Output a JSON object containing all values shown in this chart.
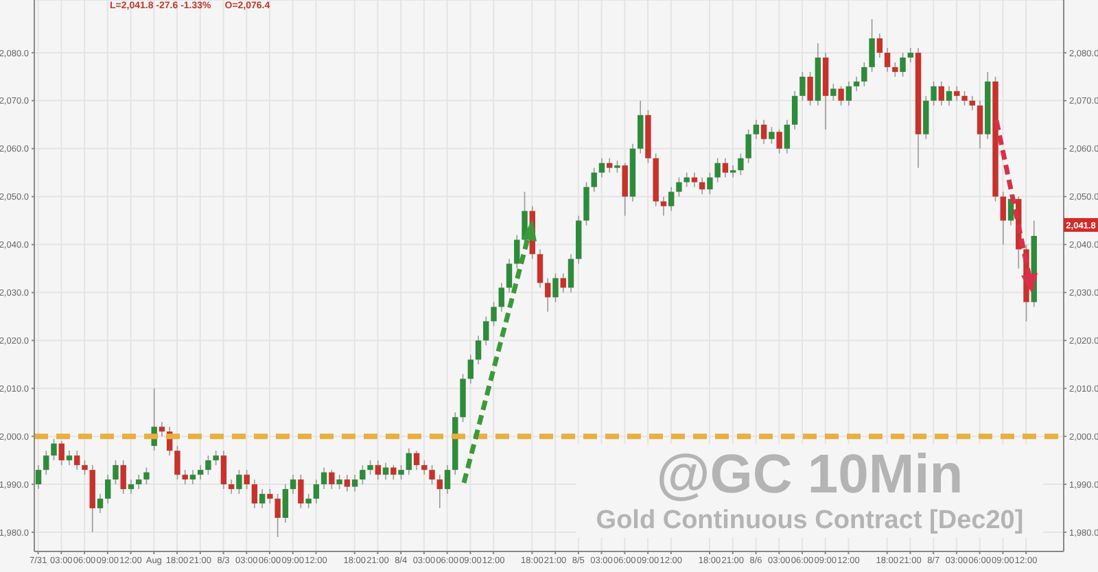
{
  "chart_data": {
    "type": "candlestick",
    "title": "@GC 10Min",
    "subtitle": "Gold Continuous Contract [Dec20]",
    "annotations": [
      "L=2,041.8  -27.6  -1.33%",
      "O=2,076.4",
      "2,041.8"
    ],
    "categories": [
      "7/31",
      null,
      null,
      "03:00",
      null,
      null,
      "06:00",
      null,
      null,
      "09:00",
      null,
      null,
      "12:00",
      null,
      null,
      "Aug",
      null,
      null,
      "18:00",
      null,
      null,
      "21:00",
      null,
      null,
      "8/3",
      null,
      null,
      "03:00",
      null,
      null,
      "06:00",
      null,
      null,
      "09:00",
      null,
      null,
      "12:00",
      null,
      null,
      null,
      null,
      "18:00",
      null,
      null,
      "21:00",
      null,
      null,
      "8/4",
      null,
      null,
      "03:00",
      null,
      null,
      "06:00",
      null,
      null,
      "09:00",
      null,
      null,
      "12:00",
      null,
      null,
      null,
      null,
      "18:00",
      null,
      null,
      "21:00",
      null,
      null,
      "8/5",
      null,
      null,
      "03:00",
      null,
      null,
      "06:00",
      null,
      null,
      "09:00",
      null,
      null,
      "12:00",
      null,
      null,
      null,
      null,
      "18:00",
      null,
      null,
      "21:00",
      null,
      null,
      "8/6",
      null,
      null,
      "03:00",
      null,
      null,
      "06:00",
      null,
      null,
      "09:00",
      null,
      null,
      "12:00",
      null,
      null,
      null,
      null,
      "18:00",
      null,
      null,
      "21:00",
      null,
      null,
      "8/7",
      null,
      null,
      "03:00",
      null,
      null,
      "06:00",
      null,
      null,
      "09:00",
      null,
      null,
      "12:00",
      null
    ],
    "ohlc": [
      [
        1990,
        1994,
        1989,
        1993
      ],
      [
        1993,
        1997,
        1992,
        1996
      ],
      [
        1996,
        1999.5,
        1995,
        1998.5
      ],
      [
        1998.5,
        1999,
        1994,
        1995
      ],
      [
        1995,
        1997,
        1994,
        1996
      ],
      [
        1996,
        1997,
        1993,
        1994
      ],
      [
        1994,
        1995,
        1992,
        1993
      ],
      [
        1993,
        1994,
        1980,
        1985
      ],
      [
        1985,
        1988,
        1984,
        1987
      ],
      [
        1987,
        1992,
        1986,
        1991
      ],
      [
        1991,
        1995,
        1990,
        1994
      ],
      [
        1994,
        1995,
        1988,
        1989
      ],
      [
        1989,
        1991,
        1988,
        1990
      ],
      [
        1990,
        1992,
        1989,
        1991
      ],
      [
        1991,
        1993.5,
        1990,
        1992.5
      ],
      [
        1998,
        2010,
        1997,
        2002
      ],
      [
        2002,
        2003,
        2000,
        2001
      ],
      [
        2001,
        2002,
        1996,
        1997
      ],
      [
        1997,
        1998,
        1991,
        1992
      ],
      [
        1992,
        1993,
        1990,
        1991
      ],
      [
        1991,
        1993,
        1990,
        1992
      ],
      [
        1992,
        1994,
        1991,
        1993
      ],
      [
        1993,
        1996,
        1992,
        1995
      ],
      [
        1995,
        1997,
        1994,
        1996
      ],
      [
        1996,
        1997,
        1989,
        1990
      ],
      [
        1990,
        1991,
        1988,
        1989
      ],
      [
        1989,
        1993,
        1988,
        1992
      ],
      [
        1992,
        1993,
        1989,
        1990
      ],
      [
        1990,
        1991,
        1985,
        1986
      ],
      [
        1986,
        1989,
        1985,
        1988
      ],
      [
        1988,
        1989,
        1986,
        1987
      ],
      [
        1987,
        1988,
        1979,
        1983
      ],
      [
        1983,
        1990,
        1982,
        1989
      ],
      [
        1989,
        1992,
        1988,
        1991
      ],
      [
        1991,
        1992,
        1985,
        1986
      ],
      [
        1986,
        1988,
        1985,
        1987
      ],
      [
        1987,
        1991,
        1986,
        1990
      ],
      [
        1990,
        1993.5,
        1989,
        1992.5
      ],
      [
        1992.5,
        1993,
        1989,
        1990
      ],
      [
        1990,
        1992,
        1989,
        1991
      ],
      [
        1991,
        1992,
        1988.5,
        1989.5
      ],
      [
        1989.5,
        1992,
        1988.5,
        1991
      ],
      [
        1991,
        1994,
        1990,
        1993
      ],
      [
        1993,
        1995,
        1992,
        1994
      ],
      [
        1994,
        1995,
        1991,
        1992
      ],
      [
        1992,
        1994.5,
        1991,
        1993.5
      ],
      [
        1993.5,
        1994,
        1991,
        1992
      ],
      [
        1992,
        1994,
        1991,
        1993
      ],
      [
        1993,
        1997.5,
        1992,
        1996.5
      ],
      [
        1996.5,
        1997,
        1993,
        1994
      ],
      [
        1994,
        1995,
        1992,
        1993
      ],
      [
        1993,
        1994,
        1990,
        1991
      ],
      [
        1991,
        1992,
        1985,
        1989
      ],
      [
        1989,
        1994,
        1988,
        1993
      ],
      [
        1993,
        2005,
        1992,
        2004
      ],
      [
        2004,
        2013,
        2003,
        2012
      ],
      [
        2012,
        2017,
        2011,
        2016
      ],
      [
        2016,
        2021,
        2015,
        2020
      ],
      [
        2020,
        2025,
        2019,
        2024
      ],
      [
        2024,
        2028,
        2023,
        2027
      ],
      [
        2027,
        2032,
        2026,
        2031
      ],
      [
        2031,
        2037,
        2030,
        2036
      ],
      [
        2036,
        2042,
        2035,
        2041
      ],
      [
        2041,
        2051,
        2040,
        2047
      ],
      [
        2047,
        2048,
        2037,
        2038
      ],
      [
        2038,
        2039,
        2031,
        2032
      ],
      [
        2032,
        2033,
        2026,
        2029
      ],
      [
        2029,
        2034,
        2028,
        2033
      ],
      [
        2033,
        2034,
        2030,
        2031
      ],
      [
        2031,
        2038,
        2030,
        2037
      ],
      [
        2037,
        2046,
        2036,
        2045
      ],
      [
        2045,
        2053,
        2044,
        2052
      ],
      [
        2052,
        2056,
        2051,
        2055
      ],
      [
        2055,
        2058,
        2054,
        2057
      ],
      [
        2057,
        2058,
        2055,
        2056
      ],
      [
        2056,
        2057.5,
        2055,
        2056.5
      ],
      [
        2056.5,
        2057,
        2046,
        2050
      ],
      [
        2050,
        2061,
        2049,
        2060
      ],
      [
        2060,
        2070,
        2059,
        2067
      ],
      [
        2067,
        2068,
        2057,
        2058
      ],
      [
        2058,
        2059,
        2048,
        2049
      ],
      [
        2049,
        2050,
        2046,
        2048
      ],
      [
        2048,
        2052,
        2047,
        2051
      ],
      [
        2051,
        2054,
        2050,
        2053
      ],
      [
        2053,
        2055,
        2052,
        2054
      ],
      [
        2054,
        2055,
        2052,
        2053
      ],
      [
        2053,
        2054,
        2050.5,
        2051.5
      ],
      [
        2051.5,
        2055,
        2050.5,
        2054
      ],
      [
        2054,
        2058,
        2053,
        2057
      ],
      [
        2057,
        2058,
        2054,
        2055
      ],
      [
        2055,
        2056.5,
        2054,
        2055.5
      ],
      [
        2055.5,
        2059,
        2054.5,
        2058
      ],
      [
        2058,
        2064,
        2057,
        2063
      ],
      [
        2063,
        2066,
        2062,
        2065
      ],
      [
        2065,
        2066,
        2061,
        2062
      ],
      [
        2062,
        2064.5,
        2061,
        2063.5
      ],
      [
        2063.5,
        2064,
        2059,
        2060
      ],
      [
        2060,
        2066,
        2059,
        2065
      ],
      [
        2065,
        2072,
        2064,
        2071
      ],
      [
        2071,
        2076,
        2070,
        2075
      ],
      [
        2075,
        2076,
        2069,
        2070
      ],
      [
        2070,
        2082,
        2069,
        2079
      ],
      [
        2079,
        2080,
        2064,
        2071
      ],
      [
        2071,
        2073.5,
        2070,
        2072.5
      ],
      [
        2072.5,
        2073,
        2069,
        2070
      ],
      [
        2070,
        2074,
        2069,
        2073
      ],
      [
        2073,
        2075,
        2072,
        2074
      ],
      [
        2074,
        2078,
        2073,
        2077
      ],
      [
        2077,
        2087,
        2076,
        2083
      ],
      [
        2083,
        2084,
        2079,
        2080
      ],
      [
        2080,
        2081,
        2076,
        2077
      ],
      [
        2077,
        2078,
        2075,
        2076
      ],
      [
        2076,
        2080,
        2075,
        2079
      ],
      [
        2079,
        2081,
        2078,
        2080
      ],
      [
        2080,
        2081,
        2056,
        2063
      ],
      [
        2063,
        2071,
        2062,
        2070
      ],
      [
        2070,
        2074,
        2069,
        2073
      ],
      [
        2073,
        2074,
        2069,
        2070
      ],
      [
        2070,
        2073,
        2069,
        2072
      ],
      [
        2072,
        2073,
        2070,
        2071
      ],
      [
        2071,
        2072,
        2069,
        2070
      ],
      [
        2070,
        2071,
        2068,
        2069
      ],
      [
        2069,
        2070,
        2060,
        2063
      ],
      [
        2063,
        2076,
        2062,
        2074
      ],
      [
        2074,
        2075,
        2049,
        2050
      ],
      [
        2050,
        2051,
        2040,
        2045
      ],
      [
        2045,
        2050.5,
        2044,
        2049.5
      ],
      [
        2049.5,
        2050,
        2035,
        2039
      ],
      [
        2039,
        2040,
        2024,
        2028
      ],
      [
        2028,
        2045,
        2027,
        2041.8
      ]
    ],
    "ylim": [
      1976,
      2091
    ],
    "yticks": [
      {
        "value": 1980,
        "label": "1,980.0"
      },
      {
        "value": 1990,
        "label": "1,990.0"
      },
      {
        "value": 2000,
        "label": "2,000.0"
      },
      {
        "value": 2010,
        "label": "2,010.0"
      },
      {
        "value": 2020,
        "label": "2,020.0"
      },
      {
        "value": 2030,
        "label": "2,030.0"
      },
      {
        "value": 2040,
        "label": "2,040.0"
      },
      {
        "value": 2050,
        "label": "2,050.0"
      },
      {
        "value": 2060,
        "label": "2,060.0"
      },
      {
        "value": 2070,
        "label": "2,070.0"
      },
      {
        "value": 2080,
        "label": "2,080.0"
      }
    ],
    "y2lim": [
      1976,
      2091
    ],
    "y2ticks": [
      {
        "value": 1980,
        "label": "1,980.0"
      },
      {
        "value": 1990,
        "label": "1,990.0"
      },
      {
        "value": 2000,
        "label": "2,000.0"
      },
      {
        "value": 2010,
        "label": "2,010.0"
      },
      {
        "value": 2020,
        "label": "2,020.0"
      },
      {
        "value": 2030,
        "label": "2,030.0"
      },
      {
        "value": 2040,
        "label": "2,040.0"
      },
      {
        "value": 2050,
        "label": "2,050.0"
      },
      {
        "value": 2060,
        "label": "2,060.0"
      },
      {
        "value": 2070,
        "label": "2,070.0"
      },
      {
        "value": 2080,
        "label": "2,080.0"
      }
    ],
    "grid": true,
    "ref_lines": [
      {
        "axis": "y",
        "value": 2000,
        "color": "#e8b040",
        "line_style": "dashed"
      }
    ]
  }
}
